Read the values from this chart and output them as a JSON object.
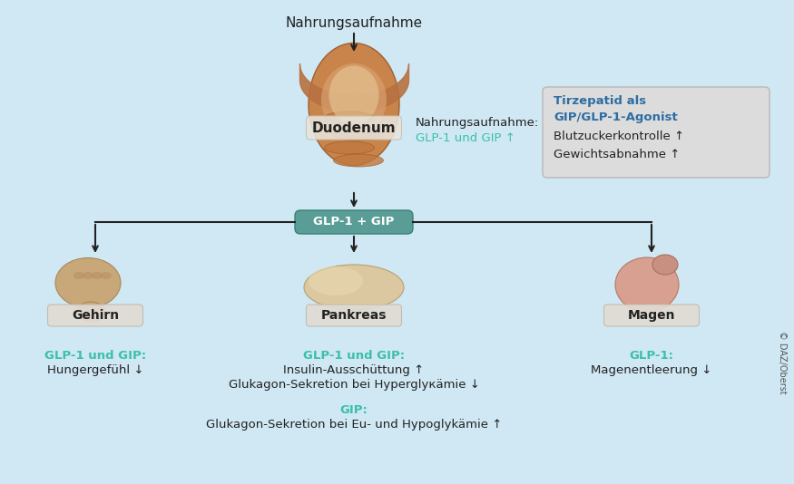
{
  "bg_color": "#cfe8f3",
  "title_text": "Nahrungsaufnahme",
  "duodenum_label": "Duodenum",
  "glp_gip_box_label": "GLP-1 + GIP",
  "nahrung_side_label1": "Nahrungsaufnahme:",
  "nahrung_side_label2": "GLP-1 und GIP ↑",
  "box_title_blue1": "Tirzepatid als",
  "box_title_blue2": "GIP/GLP-1-Agonist",
  "box_line3": "Blutzuckerkontrolle ↑",
  "box_line4": "Gewichtsabnahme ↑",
  "organ1_label": "Gehirn",
  "organ2_label": "Pankreas",
  "organ3_label": "Magen",
  "green_color": "#3cbfad",
  "blue_color": "#2e6da4",
  "dark_text": "#222222",
  "box_bg": "#dcdcdc",
  "organ_label_bg": "#e8e3da",
  "glp_box_bg": "#5a9d96",
  "arrow_color": "#222222",
  "left_col_green1": "GLP-1 und GIP:",
  "left_col_black1": "Hungergefühl ↓",
  "mid_col_green1": "GLP-1 und GIP:",
  "mid_col_black1": "Insulin-Ausschüttung ↑",
  "mid_col_black2": "Glukagon-Sekretion bei Hyperglyкämie ↓",
  "right_col_green1": "GLP-1:",
  "right_col_black1": "Magenentleerung ↓",
  "bottom_green": "GIP:",
  "bottom_black": "Glukagon-Sekretion bei Eu- und Hypoglykämie ↑",
  "copyright": "© DAZ/Oberst",
  "fig_w": 8.75,
  "fig_h": 5.34,
  "dpi": 100
}
